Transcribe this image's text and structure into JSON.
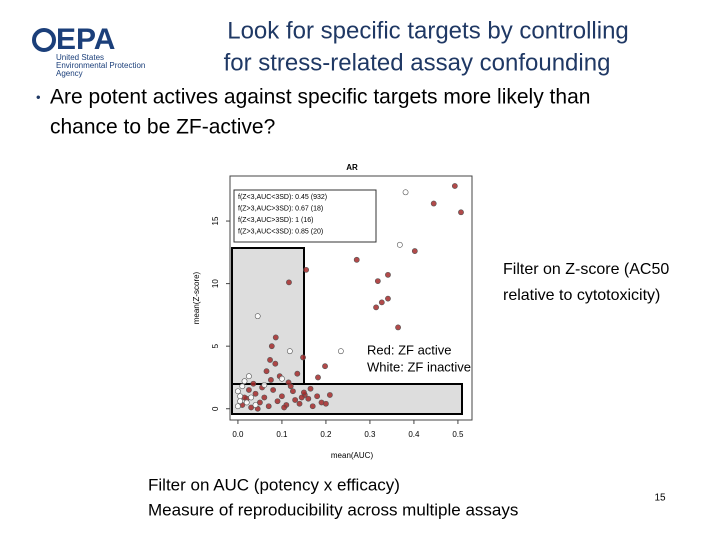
{
  "header": {
    "logo": {
      "name": "EPA",
      "lines": [
        "United States",
        "Environmental Protection",
        "Agency"
      ]
    },
    "title": [
      "Look for specific targets by controlling",
      "for stress-related assay confounding"
    ]
  },
  "bullet": [
    "Are potent actives against specific targets more likely than",
    "chance to be ZF-active?"
  ],
  "chart_data": {
    "type": "scatter",
    "title": "AR",
    "x_label": "mean(AUC)",
    "y_label": "mean(Z-score)",
    "xlim": [
      -0.018,
      0.532
    ],
    "ylim": [
      -0.9,
      18.6
    ],
    "xticks": [
      {
        "value": 0,
        "label": "0.0"
      },
      0.1,
      0.2,
      0.3,
      0.4,
      0.5
    ],
    "yticks": [
      0,
      5,
      10,
      15
    ],
    "stats_box": [
      "f(Z<3,AUC<3SD): 0.45 (932)",
      "f(Z>3,AUC>3SD): 0.67 (18)",
      "f(Z<3,AUC>3SD): 1 (16)",
      "f(Z>3,AUC<3SD): 0.85 (20)"
    ],
    "series": [
      {
        "name": "Red: ZF active",
        "color": "#a52a2a",
        "x": [
          0.493,
          0.507,
          0.445,
          0.402,
          0.27,
          0.318,
          0.341,
          0.327,
          0.341,
          0.314,
          0.364,
          0.155,
          0.116,
          0.086,
          0.077,
          0.073,
          0.198,
          0.148,
          0.182,
          0.209,
          0.152,
          0.01,
          0.02,
          0.03,
          0.04,
          0.05,
          0.06,
          0.07,
          0.08,
          0.09,
          0.1,
          0.11,
          0.12,
          0.13,
          0.14,
          0.15,
          0.16,
          0.17,
          0.18,
          0.19,
          0.035,
          0.055,
          0.075,
          0.095,
          0.115,
          0.065,
          0.085,
          0.125,
          0.045,
          0.105,
          0.145,
          0.025,
          0.135,
          0.165,
          0.015,
          0.2
        ],
        "values": [
          17.8,
          15.7,
          16.4,
          12.6,
          11.9,
          10.2,
          10.7,
          8.5,
          8.8,
          8.1,
          6.5,
          11.1,
          10.1,
          5.7,
          5.0,
          3.9,
          3.4,
          4.1,
          2.5,
          1.1,
          1.1,
          0.3,
          0.8,
          0.1,
          1.2,
          0.5,
          0.9,
          0.2,
          1.5,
          0.6,
          1.0,
          0.3,
          1.8,
          0.7,
          0.4,
          1.3,
          0.8,
          0.2,
          1.0,
          0.5,
          2.0,
          1.7,
          2.3,
          2.6,
          2.1,
          3.0,
          3.6,
          1.4,
          0.0,
          0.1,
          0.9,
          1.5,
          2.8,
          1.6,
          0.9,
          0.4
        ]
      },
      {
        "name": "White: ZF inactive",
        "color": "#ffffff",
        "x": [
          0.381,
          0.368,
          0.045,
          0.118,
          0.234,
          0.0,
          0.005,
          0.01,
          0.02,
          0.015,
          0.03,
          0.0,
          0.04,
          0.025,
          0.06,
          0.1,
          0.005
        ],
        "values": [
          17.3,
          13.1,
          7.4,
          4.6,
          4.6,
          0.2,
          1.0,
          1.8,
          0.5,
          2.2,
          0.9,
          1.4,
          0.3,
          2.6,
          1.9,
          2.4,
          0.6
        ]
      }
    ]
  },
  "annotations": {
    "zscore": [
      "Filter on Z-score (AC50",
      "relative to cytotoxicity)"
    ],
    "auc": [
      "Filter on AUC (potency x efficacy)",
      "Measure of reproducibility across multiple assays"
    ]
  },
  "page_number": "15"
}
